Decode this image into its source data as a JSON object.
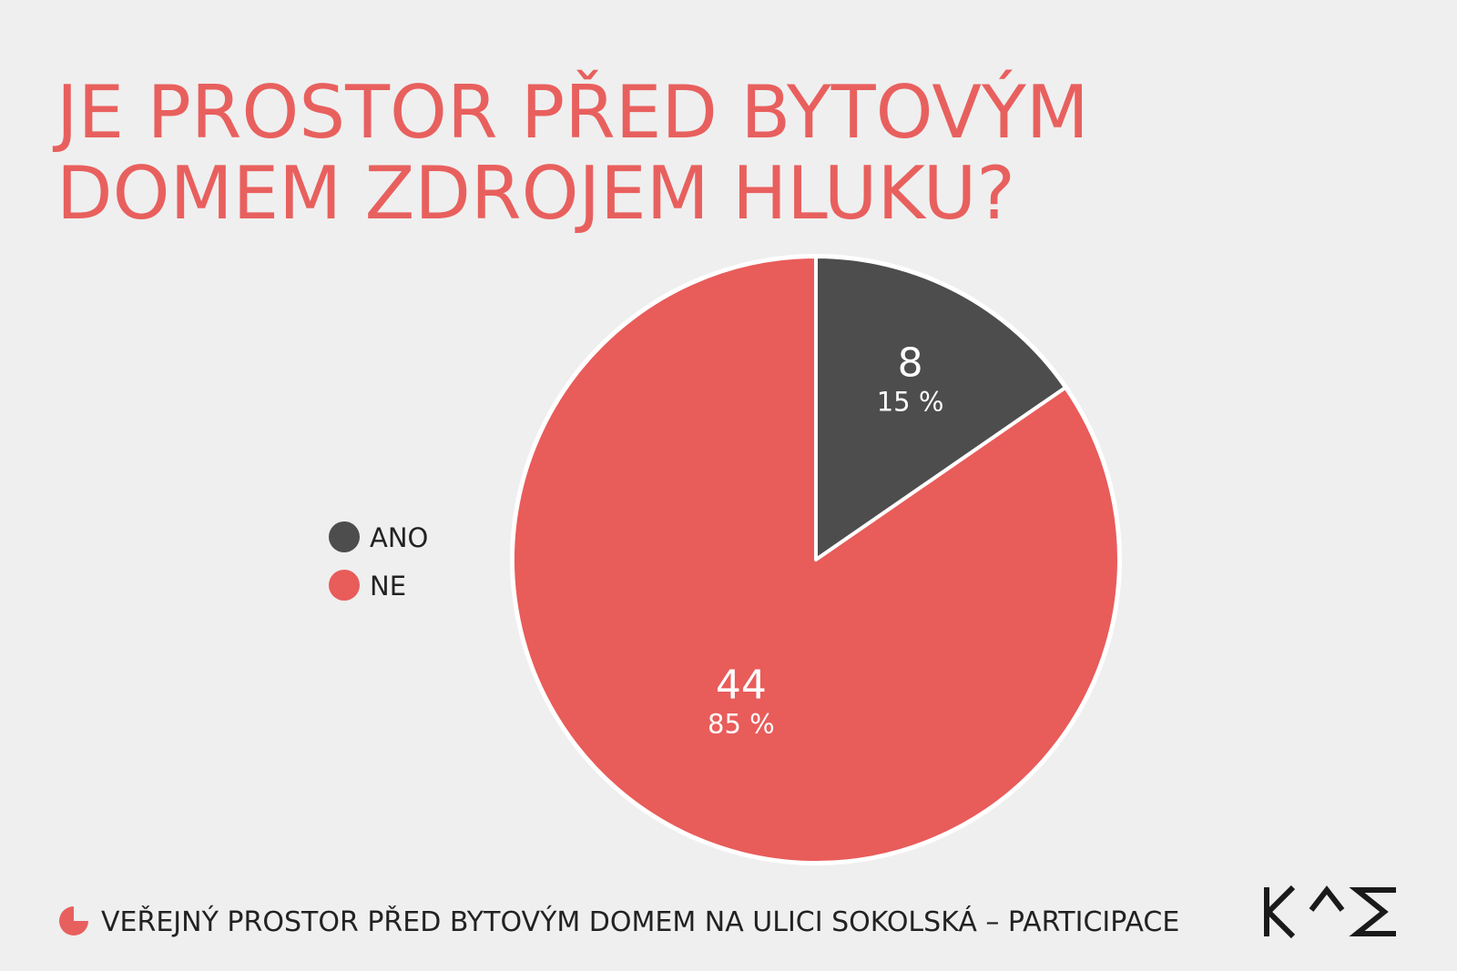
{
  "chart_data": {
    "type": "pie",
    "title": [
      "JE PROSTOR PŘED BYTOVÝM",
      "DOMEM ZDROJEM HLUKU?"
    ],
    "categories": [
      "ANO",
      "NE"
    ],
    "values": [
      8,
      44
    ],
    "colors": [
      "#4d4d4d",
      "#e85c5a"
    ],
    "percent_values": [
      15,
      85
    ],
    "percent_labels": [
      "15 %",
      "85 %"
    ],
    "footer": "VEŘEJNÝ PROSTOR PŘED BYTOVÝM DOMEM NA ULICI SOKOLSKÁ – PARTICIPACE"
  }
}
